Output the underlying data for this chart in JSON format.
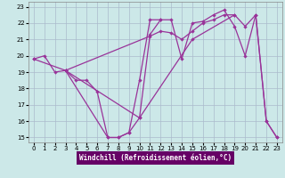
{
  "xlabel": "Windchill (Refroidissement éolien,°C)",
  "background_color": "#cce8e8",
  "grid_color": "#aabbcc",
  "line_color": "#993399",
  "xlabel_bg": "#660066",
  "xlim": [
    -0.5,
    23.5
  ],
  "ylim": [
    14.7,
    23.3
  ],
  "xticks": [
    0,
    1,
    2,
    3,
    4,
    5,
    6,
    7,
    8,
    9,
    10,
    11,
    12,
    13,
    14,
    15,
    16,
    17,
    18,
    19,
    20,
    21,
    22,
    23
  ],
  "yticks": [
    15,
    16,
    17,
    18,
    19,
    20,
    21,
    22,
    23
  ],
  "series1": [
    [
      0,
      19.8
    ],
    [
      1,
      20.0
    ],
    [
      2,
      19.0
    ],
    [
      3,
      19.1
    ],
    [
      4,
      18.5
    ],
    [
      5,
      18.5
    ],
    [
      6,
      17.8
    ],
    [
      7,
      15.0
    ],
    [
      8,
      15.0
    ],
    [
      9,
      15.3
    ],
    [
      10,
      18.5
    ],
    [
      11,
      22.2
    ],
    [
      12,
      22.2
    ]
  ],
  "series2": [
    [
      0,
      19.8
    ],
    [
      3,
      19.1
    ],
    [
      11,
      21.2
    ],
    [
      12,
      21.5
    ],
    [
      13,
      21.4
    ],
    [
      14,
      21.0
    ],
    [
      15,
      21.5
    ],
    [
      16,
      22.0
    ],
    [
      17,
      22.2
    ],
    [
      18,
      22.5
    ],
    [
      19,
      22.5
    ],
    [
      20,
      21.8
    ],
    [
      21,
      22.5
    ],
    [
      22,
      16.0
    ],
    [
      23,
      15.0
    ]
  ],
  "series3": [
    [
      3,
      19.1
    ],
    [
      10,
      16.2
    ],
    [
      11,
      21.3
    ],
    [
      12,
      22.2
    ],
    [
      13,
      22.2
    ],
    [
      14,
      19.8
    ],
    [
      15,
      22.0
    ],
    [
      16,
      22.1
    ],
    [
      17,
      22.5
    ],
    [
      18,
      22.8
    ],
    [
      19,
      21.8
    ],
    [
      20,
      20.0
    ],
    [
      21,
      22.5
    ],
    [
      22,
      16.0
    ],
    [
      23,
      15.0
    ]
  ],
  "series4": [
    [
      3,
      19.1
    ],
    [
      7,
      15.0
    ],
    [
      8,
      15.0
    ],
    [
      9,
      15.3
    ],
    [
      10,
      16.2
    ],
    [
      15,
      21.0
    ],
    [
      19,
      22.5
    ]
  ]
}
